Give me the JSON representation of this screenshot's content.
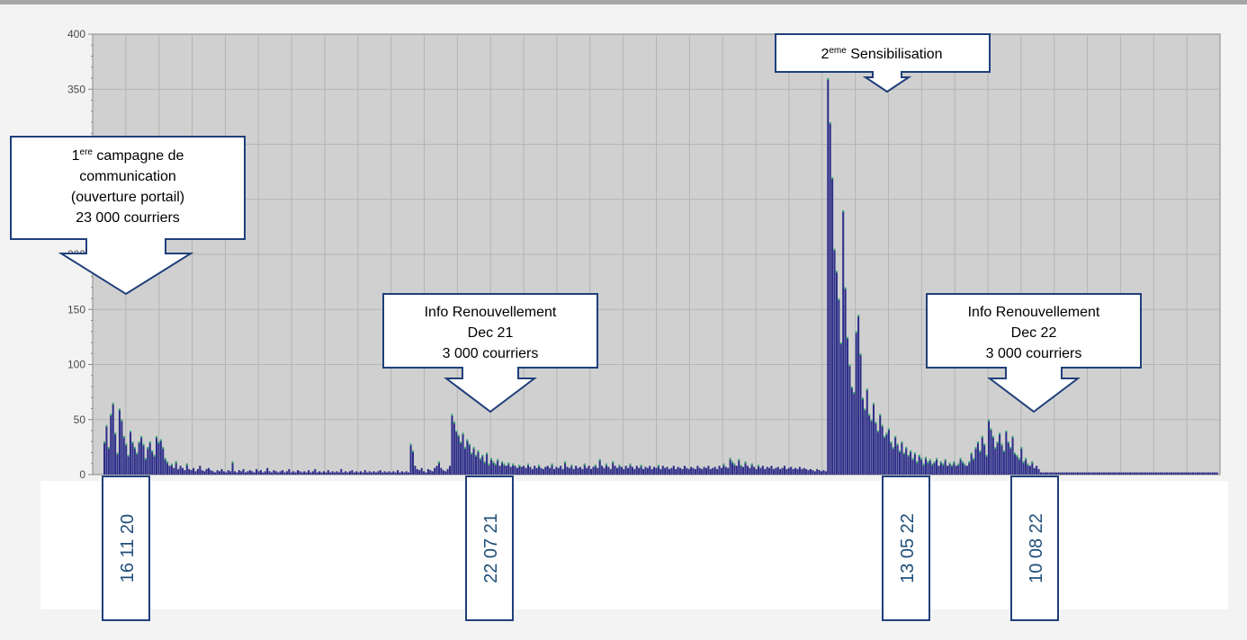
{
  "chart_data": {
    "type": "bar",
    "title": "",
    "xlabel": "",
    "ylabel": "",
    "ylim": [
      0,
      400
    ],
    "yticks": [
      0,
      50,
      100,
      150,
      200,
      250,
      300,
      350,
      400
    ],
    "grid": true,
    "bar_color": "#2e2e8a",
    "bar_top_color": "#3cb371",
    "plot_bg": "#d0d0d0",
    "series": [
      {
        "values": [
          30,
          45,
          25,
          55,
          65,
          38,
          20,
          60,
          50,
          35,
          28,
          18,
          40,
          30,
          25,
          20,
          30,
          35,
          28,
          15,
          25,
          30,
          22,
          18,
          35,
          30,
          32,
          25,
          15,
          12,
          8,
          10,
          6,
          12,
          5,
          8,
          6,
          4,
          10,
          5,
          4,
          6,
          3,
          5,
          8,
          4,
          3,
          5,
          6,
          4,
          3,
          2,
          4,
          3,
          5,
          3,
          2,
          4,
          3,
          12,
          3,
          2,
          4,
          3,
          5,
          2,
          3,
          4,
          3,
          2,
          5,
          3,
          4,
          2,
          3,
          6,
          3,
          2,
          4,
          3,
          2,
          3,
          4,
          2,
          3,
          5,
          2,
          3,
          2,
          4,
          3,
          2,
          3,
          2,
          4,
          2,
          3,
          5,
          2,
          3,
          2,
          3,
          2,
          4,
          2,
          3,
          2,
          3,
          2,
          5,
          2,
          3,
          2,
          3,
          4,
          2,
          3,
          2,
          3,
          2,
          4,
          2,
          3,
          2,
          3,
          2,
          3,
          4,
          2,
          3,
          2,
          3,
          2,
          3,
          2,
          4,
          2,
          3,
          2,
          3,
          2,
          28,
          22,
          8,
          5,
          4,
          6,
          3,
          2,
          5,
          4,
          3,
          6,
          8,
          12,
          6,
          4,
          3,
          5,
          8,
          55,
          48,
          40,
          36,
          30,
          38,
          25,
          32,
          28,
          20,
          25,
          18,
          22,
          15,
          18,
          12,
          20,
          10,
          15,
          12,
          10,
          14,
          8,
          12,
          10,
          8,
          11,
          7,
          10,
          8,
          6,
          9,
          7,
          8,
          6,
          10,
          7,
          5,
          8,
          6,
          9,
          6,
          5,
          7,
          8,
          6,
          10,
          5,
          7,
          6,
          8,
          5,
          12,
          7,
          6,
          9,
          5,
          8,
          6,
          7,
          5,
          10,
          6,
          8,
          5,
          7,
          9,
          6,
          14,
          8,
          6,
          10,
          7,
          5,
          12,
          8,
          6,
          9,
          7,
          5,
          8,
          6,
          10,
          7,
          5,
          8,
          6,
          9,
          5,
          7,
          6,
          8,
          5,
          7,
          6,
          9,
          5,
          8,
          6,
          7,
          5,
          6,
          8,
          5,
          7,
          6,
          5,
          8,
          6,
          5,
          7,
          6,
          5,
          8,
          6,
          5,
          7,
          6,
          8,
          5,
          6,
          7,
          5,
          8,
          6,
          10,
          7,
          6,
          15,
          12,
          10,
          8,
          14,
          9,
          7,
          12,
          8,
          6,
          10,
          7,
          5,
          9,
          6,
          8,
          5,
          7,
          6,
          8,
          5,
          6,
          7,
          5,
          6,
          8,
          5,
          6,
          7,
          5,
          6,
          5,
          7,
          5,
          6,
          5,
          4,
          5,
          4,
          3,
          5,
          4,
          3,
          4,
          3,
          360,
          320,
          270,
          205,
          185,
          160,
          120,
          240,
          170,
          125,
          100,
          80,
          75,
          130,
          145,
          110,
          70,
          60,
          78,
          55,
          50,
          65,
          48,
          40,
          55,
          45,
          35,
          38,
          42,
          30,
          25,
          35,
          28,
          22,
          30,
          20,
          25,
          18,
          22,
          15,
          20,
          12,
          18,
          15,
          10,
          16,
          12,
          14,
          10,
          12,
          15,
          8,
          12,
          10,
          14,
          8,
          11,
          9,
          12,
          8,
          10,
          15,
          12,
          10,
          8,
          12,
          20,
          15,
          25,
          30,
          22,
          35,
          28,
          18,
          50,
          42,
          35,
          25,
          30,
          38,
          28,
          22,
          40,
          30,
          25,
          35,
          20,
          18,
          15,
          25,
          12,
          15,
          10,
          8,
          12,
          6,
          8,
          5,
          2,
          2,
          2,
          2,
          2,
          2,
          2,
          2,
          2,
          2,
          2,
          2,
          2,
          2,
          2,
          2,
          2,
          2,
          2,
          2,
          2,
          2,
          2,
          2,
          2,
          2,
          2,
          2,
          2,
          2,
          2,
          2,
          2,
          2,
          2,
          2,
          2,
          2,
          2,
          2,
          2,
          2,
          2,
          2,
          2,
          2,
          2,
          2,
          2,
          2,
          2,
          2,
          2,
          2,
          2,
          2,
          2,
          2,
          2,
          2,
          2,
          2,
          2,
          2,
          2,
          2,
          2,
          2,
          2,
          2,
          2,
          2,
          2,
          2,
          2,
          2,
          2,
          2,
          2,
          2,
          2,
          2
        ]
      }
    ]
  },
  "annotations": {
    "callout1": {
      "lines": [
        "1",
        "ere",
        " campagne de",
        "communication",
        "(ouverture portail)",
        "23 000 courriers"
      ]
    },
    "callout2": {
      "lines": [
        "Info Renouvellement",
        "Dec 21",
        "3 000 courriers"
      ]
    },
    "callout3": {
      "lines": [
        "2",
        "eme",
        " Sensibilisation"
      ]
    },
    "callout4": {
      "lines": [
        "Info Renouvellement",
        "Dec 22",
        "3 000 courriers"
      ]
    }
  },
  "date_labels": [
    "16 11 20",
    "22 07 21",
    "13 05 22",
    "10 08 22"
  ],
  "colors": {
    "callout_border": "#1f3f7a",
    "date_text": "#1f4e79"
  }
}
